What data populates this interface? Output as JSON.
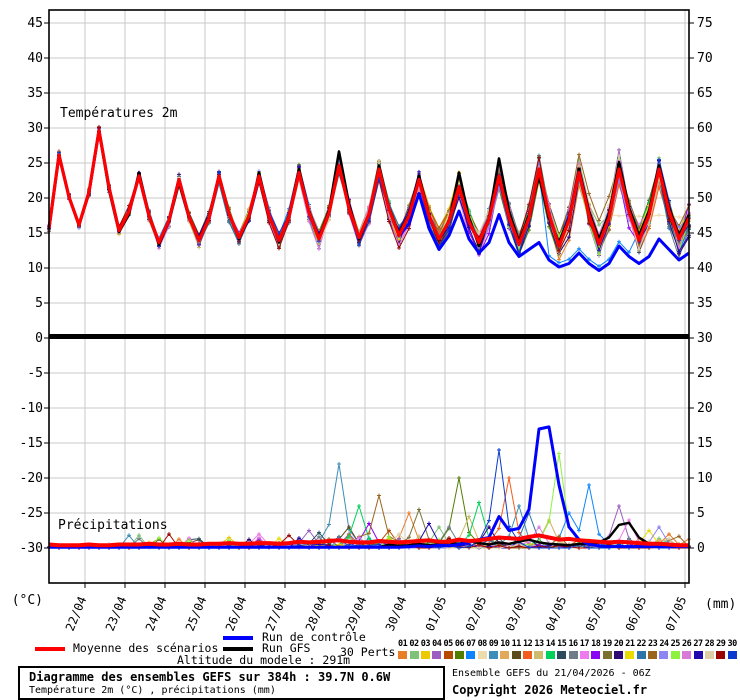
{
  "chart": {
    "temp_section_label": "Températures 2m",
    "precip_section_label": "Précipitations",
    "left_unit": "(°C)",
    "right_unit": "(mm)",
    "left_ticks": [
      45,
      40,
      35,
      30,
      25,
      20,
      15,
      10,
      5,
      0,
      -5,
      -10,
      -15,
      -20,
      -25,
      -30
    ],
    "right_ticks": [
      75,
      70,
      65,
      60,
      55,
      50,
      45,
      40,
      35,
      30,
      25,
      20,
      15,
      10,
      5,
      0
    ],
    "dates": [
      "22/04",
      "23/04",
      "24/04",
      "25/04",
      "26/04",
      "27/04",
      "28/04",
      "29/04",
      "30/04",
      "01/05",
      "02/05",
      "03/05",
      "04/05",
      "05/05",
      "06/05",
      "07/05"
    ],
    "grid_color": "#c8c8c8",
    "axis_color": "#000000"
  },
  "chart_data": {
    "type": "line",
    "x_step_hours": 6,
    "x_range_hours": 384,
    "temperature": {
      "label": "Températures 2m",
      "unit": "°C",
      "axis_range": [
        -30,
        45
      ],
      "mean": [
        15.5,
        26,
        20,
        16,
        20.7,
        29.5,
        21.4,
        15.2,
        17.9,
        23,
        17.3,
        13.5,
        16.7,
        22.5,
        17.2,
        13.8,
        17,
        23,
        17.6,
        14.2,
        17.3,
        23,
        17.4,
        13.8,
        17.2,
        23.5,
        17.8,
        14,
        17.7,
        24.5,
        18.4,
        14.2,
        17.6,
        24,
        18.3,
        14.5,
        17.3,
        22.5,
        17.3,
        14,
        16.6,
        21.5,
        16.5,
        13.5,
        16.8,
        23,
        17.1,
        13.2,
        17,
        24,
        17.5,
        13,
        16.7,
        23.5,
        17.4,
        13.3,
        17,
        24,
        17.9,
        13.8,
        17.4,
        24,
        18,
        14,
        17
      ],
      "control": [
        15.5,
        26,
        20,
        16,
        20.7,
        29.5,
        21.4,
        15.2,
        17.9,
        23,
        17.3,
        13.5,
        16.7,
        22.5,
        17.2,
        13.8,
        17,
        23,
        17.6,
        14.2,
        17.3,
        23,
        17.4,
        13.8,
        17.2,
        23.5,
        17.8,
        14,
        17.7,
        24.5,
        18.4,
        14.2,
        17.6,
        24,
        18.3,
        14.5,
        16.2,
        20.5,
        15.5,
        12.5,
        14.5,
        18,
        14,
        12,
        13.5,
        17.5,
        13.5,
        11.5,
        12.5,
        13.5,
        11,
        10,
        10.5,
        12,
        10.5,
        9.5,
        10.5,
        13,
        11.5,
        10.5,
        11.5,
        14,
        12.5,
        11,
        12
      ],
      "gfs": [
        15.5,
        26,
        20,
        16,
        20.5,
        29.5,
        21,
        15,
        17.5,
        23.5,
        17.5,
        13.2,
        16.5,
        22,
        17,
        14,
        17.2,
        23,
        17.5,
        14,
        17,
        23.5,
        17.5,
        13.5,
        17.5,
        24,
        18,
        14.2,
        18,
        26.5,
        19,
        14,
        17.5,
        24.5,
        18.5,
        14.8,
        17.5,
        23,
        17.5,
        13.8,
        16.5,
        23.5,
        17,
        13,
        17,
        25.5,
        18,
        13.5,
        17.5,
        23,
        17,
        13.5,
        17,
        24,
        18,
        14,
        17.5,
        25,
        18.5,
        14.5,
        18,
        24.5,
        18.5,
        14.5,
        17.5
      ],
      "member_spread": {
        "start": 0.55,
        "end": 3.2
      }
    },
    "precipitation": {
      "label": "Précipitations",
      "unit": "mm",
      "axis_range": [
        0,
        75
      ],
      "mean": [
        0.5,
        0.4,
        0.4,
        0.4,
        0.5,
        0.4,
        0.4,
        0.5,
        0.5,
        0.5,
        0.6,
        0.5,
        0.5,
        0.6,
        0.5,
        0.5,
        0.6,
        0.6,
        0.7,
        0.6,
        0.6,
        0.7,
        0.7,
        0.6,
        0.7,
        0.9,
        0.8,
        0.9,
        1.0,
        1.1,
        0.9,
        0.8,
        0.8,
        1.0,
        0.9,
        0.8,
        0.9,
        1.0,
        1.1,
        0.9,
        0.9,
        1.2,
        1.0,
        1.1,
        1.3,
        1.5,
        1.4,
        1.3,
        1.6,
        1.8,
        1.5,
        1.2,
        1.3,
        1.1,
        1.0,
        0.9,
        0.8,
        0.9,
        0.8,
        0.7,
        0.6,
        0.6,
        0.5,
        0.4,
        0.4
      ],
      "control": [
        0.1,
        0.1,
        0.1,
        0.1,
        0.1,
        0.1,
        0.1,
        0.1,
        0.1,
        0.1,
        0.1,
        0.1,
        0.1,
        0.1,
        0.1,
        0.1,
        0.1,
        0.1,
        0.1,
        0.1,
        0.1,
        0.1,
        0.1,
        0.1,
        0.1,
        0.1,
        0.1,
        0.1,
        0.1,
        0.1,
        0.1,
        0.1,
        0.1,
        0.1,
        0.1,
        0.1,
        0.2,
        0.3,
        0.2,
        0.4,
        0.3,
        0.5,
        0.8,
        1.2,
        1.5,
        4.5,
        2.5,
        2.8,
        5.5,
        17.0,
        17.3,
        9.0,
        3.0,
        1.2,
        0.5,
        0.3,
        0.2,
        0.2,
        0.2,
        0.2,
        0.2,
        0.2,
        0.2,
        0.2,
        0.2
      ],
      "gfs": [
        0.1,
        0.1,
        0.1,
        0.1,
        0.1,
        0.1,
        0.1,
        0.1,
        0.1,
        0.1,
        0.1,
        0.1,
        0.1,
        0.1,
        0.1,
        0.1,
        0.1,
        0.1,
        0.1,
        0.1,
        0.1,
        0.1,
        0.1,
        0.1,
        0.1,
        0.1,
        0.1,
        0.1,
        0.1,
        0.1,
        0.1,
        0.1,
        0.1,
        0.1,
        0.5,
        0.3,
        0.4,
        0.6,
        0.4,
        0.5,
        0.8,
        0.6,
        1.0,
        0.7,
        0.5,
        0.8,
        0.6,
        0.9,
        1.2,
        0.8,
        0.6,
        0.5,
        0.4,
        0.6,
        0.5,
        0.8,
        1.5,
        3.3,
        3.6,
        1.5,
        0.6,
        0.4,
        0.3,
        0.2,
        0.2
      ],
      "member_spikes": [
        {
          "m": 2,
          "i": 18,
          "v": 1.5
        },
        {
          "m": 16,
          "i": 21,
          "v": 2.0
        },
        {
          "m": 28,
          "i": 24,
          "v": 1.8
        },
        {
          "m": 3,
          "i": 26,
          "v": 2.5
        },
        {
          "m": 14,
          "i": 27,
          "v": 2.2
        },
        {
          "m": 8,
          "i": 29,
          "v": 12.0
        },
        {
          "m": 10,
          "i": 30,
          "v": 3.0
        },
        {
          "m": 13,
          "i": 31,
          "v": 6.0
        },
        {
          "m": 17,
          "i": 32,
          "v": 3.5
        },
        {
          "m": 22,
          "i": 33,
          "v": 7.5
        },
        {
          "m": 4,
          "i": 34,
          "v": 2.5
        },
        {
          "m": 27,
          "i": 35,
          "v": 2.0
        },
        {
          "m": 0,
          "i": 36,
          "v": 5.0
        },
        {
          "m": 18,
          "i": 37,
          "v": 5.5
        },
        {
          "m": 26,
          "i": 38,
          "v": 3.5
        },
        {
          "m": 1,
          "i": 39,
          "v": 3.0
        },
        {
          "m": 15,
          "i": 40,
          "v": 3.0
        },
        {
          "m": 5,
          "i": 41,
          "v": 10.0
        },
        {
          "m": 12,
          "i": 42,
          "v": 4.5
        },
        {
          "m": 13,
          "i": 43,
          "v": 6.5
        },
        {
          "m": 19,
          "i": 44,
          "v": 3.0
        },
        {
          "m": 29,
          "i": 45,
          "v": 14.0
        },
        {
          "m": 11,
          "i": 46,
          "v": 10.0
        },
        {
          "m": 8,
          "i": 47,
          "v": 6.0
        },
        {
          "m": 21,
          "i": 48,
          "v": 5.0
        },
        {
          "m": 25,
          "i": 49,
          "v": 3.0
        },
        {
          "m": 9,
          "i": 50,
          "v": 4.0
        },
        {
          "m": 24,
          "i": 51,
          "v": 13.5
        },
        {
          "m": 6,
          "i": 52,
          "v": 5.0
        },
        {
          "m": 6,
          "i": 54,
          "v": 9.0
        },
        {
          "m": 3,
          "i": 57,
          "v": 6.0
        },
        {
          "m": 16,
          "i": 58,
          "v": 4.0
        },
        {
          "m": 20,
          "i": 60,
          "v": 2.5
        },
        {
          "m": 23,
          "i": 61,
          "v": 3.0
        },
        {
          "m": 0,
          "i": 62,
          "v": 2.0
        }
      ]
    }
  },
  "legend": {
    "items": [
      {
        "label": "Moyenne des scénarios",
        "color": "#ff0000"
      },
      {
        "label": "Run de contrôle",
        "color": "#0000ff"
      },
      {
        "label": "Run GFS",
        "color": "#000000"
      }
    ],
    "perts_label": "30 Perts.",
    "pert_numbers": [
      "01",
      "02",
      "03",
      "04",
      "05",
      "06",
      "07",
      "08",
      "09",
      "10",
      "11",
      "12",
      "13",
      "14",
      "15",
      "16",
      "17",
      "18",
      "19",
      "20",
      "21",
      "22",
      "23",
      "24",
      "25",
      "26",
      "27",
      "28",
      "29",
      "30"
    ],
    "pert_colors": [
      "#e87d28",
      "#7dc276",
      "#edc900",
      "#9c5fbf",
      "#b54a00",
      "#527e00",
      "#0a85ff",
      "#ebdbad",
      "#3e8db6",
      "#e2a95d",
      "#5c4c1c",
      "#f25c1c",
      "#ccbc6e",
      "#00d158",
      "#2b4a5c",
      "#6c7c88",
      "#ee7bee",
      "#8a05f2",
      "#7a7030",
      "#2f0875",
      "#e8dc00",
      "#2d73a5",
      "#9a641f",
      "#8c86f2",
      "#8df23f",
      "#d87bd8",
      "#2008ad",
      "#dccfa5",
      "#9a0500",
      "#0a3acc"
    ]
  },
  "altitude_line": "Altitude du modele : 291m",
  "footer": {
    "title": "Diagramme des ensembles GEFS sur 384h : 39.7N 0.6W",
    "subtitle": "Température 2m (°C) , précipitations (mm)",
    "run_info": "Ensemble GEFS du 21/04/2026 - 06Z",
    "copyright": "Copyright 2026 Meteociel.fr"
  }
}
